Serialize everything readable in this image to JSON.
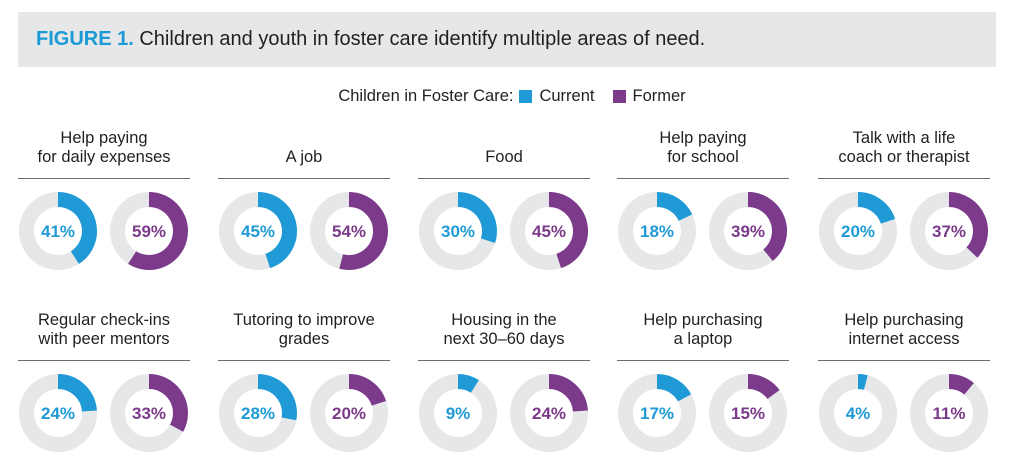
{
  "figure": {
    "label": "FIGURE 1.",
    "title": "Children and youth in foster care identify multiple areas of need."
  },
  "legend": {
    "title": "Children in Foster Care:",
    "current_label": "Current",
    "former_label": "Former"
  },
  "colors": {
    "current": "#1f9ad7",
    "former": "#7b3a8a",
    "track": "#e6e7e8",
    "banner": "#e6e7e8",
    "accent": "#1a9ad6"
  },
  "chart_data": {
    "type": "pie",
    "subtype": "donut-pairs",
    "unit": "%",
    "series_names": [
      "Current",
      "Former"
    ],
    "categories": [
      {
        "label": "Help paying for daily expenses",
        "lines": [
          "Help paying",
          "for daily expenses"
        ],
        "current": 41,
        "former": 59
      },
      {
        "label": "A job",
        "lines": [
          "A job"
        ],
        "current": 45,
        "former": 54
      },
      {
        "label": "Food",
        "lines": [
          "Food"
        ],
        "current": 30,
        "former": 45
      },
      {
        "label": "Help paying for school",
        "lines": [
          "Help paying",
          "for school"
        ],
        "current": 18,
        "former": 39
      },
      {
        "label": "Talk with a life coach or therapist",
        "lines": [
          "Talk with a life",
          "coach or therapist"
        ],
        "current": 20,
        "former": 37
      },
      {
        "label": "Regular check-ins with peer mentors",
        "lines": [
          "Regular check-ins",
          "with peer mentors"
        ],
        "current": 24,
        "former": 33
      },
      {
        "label": "Tutoring to improve grades",
        "lines": [
          "Tutoring to improve",
          "grades"
        ],
        "current": 28,
        "former": 20
      },
      {
        "label": "Housing in the next 30–60 days",
        "lines": [
          "Housing in the",
          "next 30–60 days"
        ],
        "current": 9,
        "former": 24
      },
      {
        "label": "Help purchasing a laptop",
        "lines": [
          "Help purchasing",
          "a laptop"
        ],
        "current": 17,
        "former": 15
      },
      {
        "label": "Help purchasing internet access",
        "lines": [
          "Help purchasing",
          "internet access"
        ],
        "current": 4,
        "former": 11
      }
    ]
  }
}
